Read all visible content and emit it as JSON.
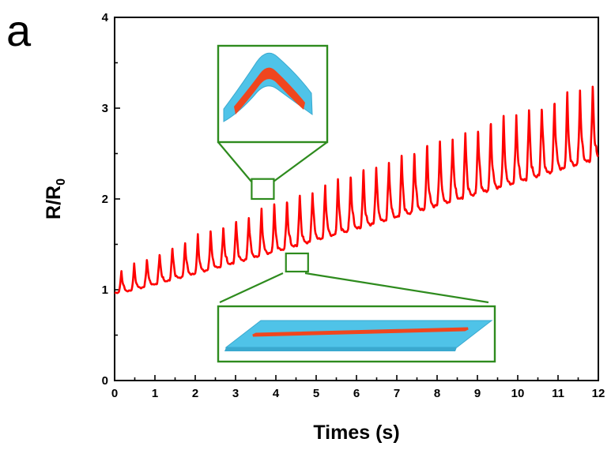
{
  "panel_label": "a",
  "chart_data": {
    "type": "line",
    "title": "",
    "xlabel": "Times (s)",
    "ylabel_main": "R/R",
    "ylabel_subscript": "0",
    "xlim": [
      0,
      12
    ],
    "ylim": [
      0,
      4
    ],
    "x_ticks": [
      0,
      1,
      2,
      3,
      4,
      5,
      6,
      7,
      8,
      9,
      10,
      11,
      12
    ],
    "y_ticks": [
      0,
      1,
      2,
      3,
      4
    ],
    "grid": false,
    "line_color": "#ff0000",
    "inset_frame_color": "#2e8b1e",
    "inset_fill_color": "#4fc3e8",
    "inset_strip_color": "#f0461e",
    "signal": {
      "cycle_period_s": 0.316,
      "baseline_start": 0.95,
      "baseline_end": 2.45,
      "peak_start": 1.16,
      "peak_end": 3.28
    },
    "zoom_boxes": [
      {
        "name": "peak-zoom",
        "x_range": [
          3.4,
          3.95
        ],
        "y_range": [
          2.0,
          2.22
        ]
      },
      {
        "name": "valley-zoom",
        "x_range": [
          4.25,
          4.8
        ],
        "y_range": [
          1.2,
          1.4
        ]
      }
    ]
  }
}
